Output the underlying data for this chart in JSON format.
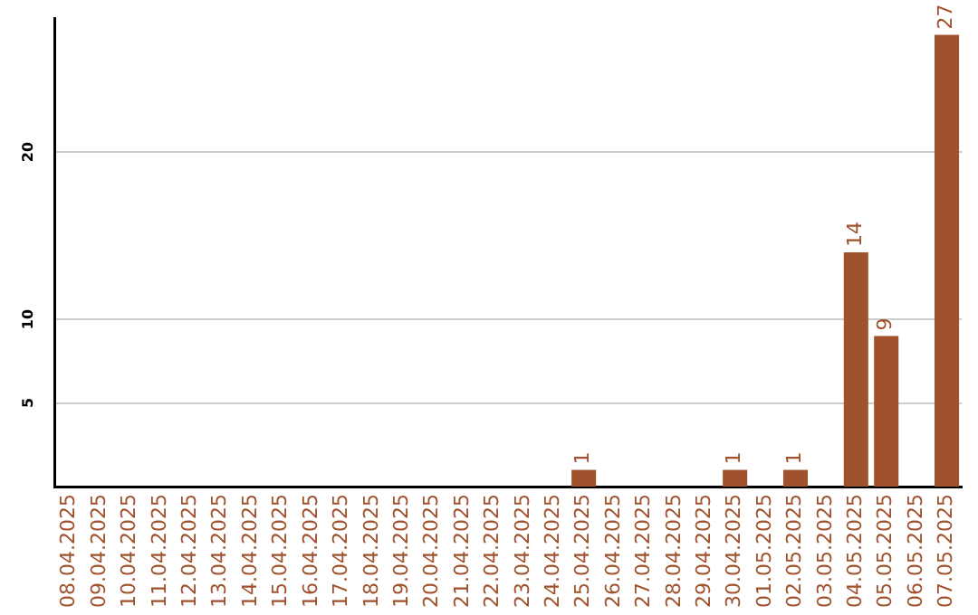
{
  "chart_data": {
    "type": "bar",
    "categories": [
      "08.04.2025",
      "09.04.2025",
      "10.04.2025",
      "11.04.2025",
      "12.04.2025",
      "13.04.2025",
      "14.04.2025",
      "15.04.2025",
      "16.04.2025",
      "17.04.2025",
      "18.04.2025",
      "19.04.2025",
      "20.04.2025",
      "21.04.2025",
      "22.04.2025",
      "23.04.2025",
      "24.04.2025",
      "25.04.2025",
      "26.04.2025",
      "27.04.2025",
      "28.04.2025",
      "29.04.2025",
      "30.04.2025",
      "01.05.2025",
      "02.05.2025",
      "03.05.2025",
      "04.05.2025",
      "05.05.2025",
      "06.05.2025",
      "07.05.2025"
    ],
    "values": [
      0,
      0,
      0,
      0,
      0,
      0,
      0,
      0,
      0,
      0,
      0,
      0,
      0,
      0,
      0,
      0,
      0,
      1,
      0,
      0,
      0,
      0,
      1,
      0,
      1,
      0,
      14,
      9,
      0,
      27
    ],
    "value_labels": [
      null,
      null,
      null,
      null,
      null,
      null,
      null,
      null,
      null,
      null,
      null,
      null,
      null,
      null,
      null,
      null,
      null,
      "1",
      null,
      null,
      null,
      null,
      "1",
      null,
      "1",
      null,
      "14",
      "9",
      null,
      "27"
    ],
    "color": "#a0522d",
    "ylim": [
      0,
      28
    ],
    "yticks": [
      5,
      10,
      20
    ],
    "grid": "y",
    "legend": false
  }
}
